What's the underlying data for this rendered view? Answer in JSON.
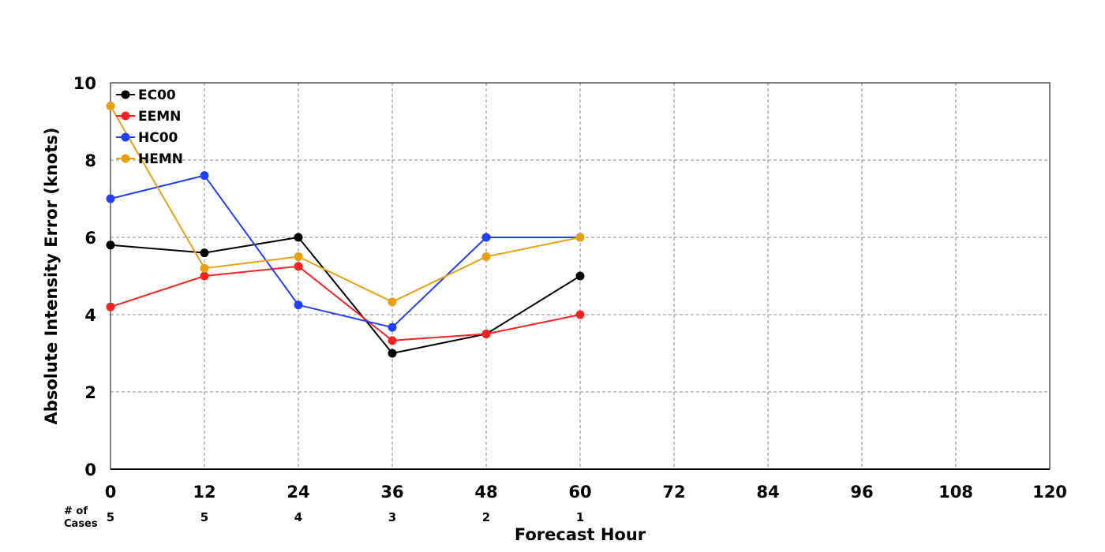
{
  "chart_data": {
    "type": "line",
    "xlabel": "Forecast Hour",
    "ylabel": "Absolute Intensity Error (knots)",
    "xlim": [
      0,
      120
    ],
    "ylim": [
      0,
      10
    ],
    "x_ticks": [
      0,
      12,
      24,
      36,
      48,
      60,
      72,
      84,
      96,
      108,
      120
    ],
    "y_ticks": [
      0,
      2,
      4,
      6,
      8,
      10
    ],
    "grid": true,
    "legend_position": "top-left",
    "series": [
      {
        "name": "EC00",
        "color": "#000000",
        "x": [
          0,
          12,
          24,
          36,
          48,
          60
        ],
        "values": [
          5.8,
          5.6,
          6.0,
          3.0,
          3.5,
          5.0
        ]
      },
      {
        "name": "EEMN",
        "color": "#ff2020",
        "x": [
          0,
          12,
          24,
          36,
          48,
          60
        ],
        "values": [
          4.2,
          5.0,
          5.25,
          3.33,
          3.5,
          4.0
        ]
      },
      {
        "name": "HC00",
        "color": "#2040ff",
        "x": [
          0,
          12,
          24,
          36,
          48,
          60
        ],
        "values": [
          7.0,
          7.6,
          4.25,
          3.67,
          6.0,
          6.0
        ]
      },
      {
        "name": "HEMN",
        "color": "#e8a010",
        "x": [
          0,
          12,
          24,
          36,
          48,
          60
        ],
        "values": [
          9.4,
          5.2,
          5.5,
          4.33,
          5.5,
          6.0
        ]
      }
    ],
    "cases": {
      "label_line1": "# of",
      "label_line2": "Cases",
      "x": [
        0,
        12,
        24,
        36,
        48,
        60
      ],
      "values": [
        "5",
        "5",
        "4",
        "3",
        "2",
        "1"
      ]
    }
  }
}
